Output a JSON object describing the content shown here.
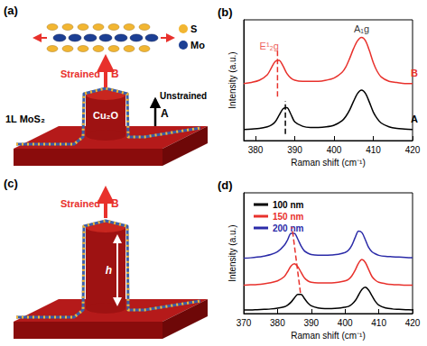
{
  "chart_data": [
    {
      "type": "line",
      "title": "(b)",
      "x_label": "Raman shift (cm⁻¹)",
      "y_label": "Intensity (a.u.)",
      "x": [
        377,
        379,
        381,
        383,
        384,
        385,
        386,
        387,
        388,
        389,
        390,
        392,
        394,
        396,
        398,
        400,
        402,
        403,
        404,
        405,
        406,
        407,
        408,
        409,
        410,
        411,
        412,
        414,
        416,
        418,
        420
      ],
      "series": [
        {
          "name": "B",
          "color": "#e8312c",
          "values": [
            5.2,
            5.3,
            5.5,
            6.0,
            6.6,
            7.2,
            7.3,
            6.8,
            6.1,
            5.7,
            5.5,
            5.4,
            5.4,
            5.4,
            5.5,
            5.7,
            6.2,
            6.7,
            7.5,
            8.4,
            9.1,
            9.4,
            9.1,
            8.2,
            7.1,
            6.3,
            5.8,
            5.4,
            5.3,
            5.2,
            5.2
          ],
          "peak_line": {
            "x": 385.6,
            "y": [
              4.0,
              8.2
            ],
            "line_style": "dashed"
          }
        },
        {
          "name": "A",
          "color": "#000000",
          "values": [
            1.0,
            1.05,
            1.1,
            1.25,
            1.4,
            1.7,
            2.3,
            2.9,
            3.0,
            2.4,
            1.7,
            1.3,
            1.2,
            1.2,
            1.25,
            1.4,
            1.8,
            2.2,
            2.8,
            3.6,
            4.3,
            4.6,
            4.3,
            3.5,
            2.6,
            2.0,
            1.6,
            1.25,
            1.1,
            1.05,
            1.0
          ],
          "peak_line": {
            "x": 387.6,
            "y": [
              0.6,
              3.6
            ],
            "line_style": "dashed"
          }
        }
      ],
      "xlim": [
        377,
        420
      ],
      "xticks": [
        380,
        390,
        400,
        410,
        420
      ],
      "ylim": [
        0,
        11
      ],
      "tick_labels": "x",
      "annotations": [
        {
          "text": "E¹₂g",
          "x": 383.5,
          "y": 8.6,
          "color": "#e8312c"
        },
        {
          "text": "A₁g",
          "x": 407,
          "y": 10.2,
          "color": "#000000"
        }
      ]
    },
    {
      "type": "line",
      "title": "(d)",
      "x_label": "Raman shift (cm⁻¹)",
      "y_label": "Intensity (a.u.)",
      "x": [
        370,
        372,
        374,
        376,
        378,
        380,
        382,
        383,
        384,
        385,
        386,
        387,
        388,
        389,
        390,
        392,
        394,
        396,
        398,
        400,
        401,
        402,
        403,
        404,
        405,
        406,
        407,
        408,
        409,
        410,
        412,
        414,
        416,
        418,
        420
      ],
      "series": [
        {
          "name": "100 nm",
          "color": "#000000",
          "values": [
            0.5,
            0.5,
            0.55,
            0.6,
            0.65,
            0.75,
            0.95,
            1.2,
            1.6,
            2.2,
            2.7,
            2.7,
            2.1,
            1.5,
            1.1,
            0.8,
            0.7,
            0.7,
            0.75,
            0.9,
            1.0,
            1.3,
            1.8,
            2.6,
            3.4,
            3.7,
            3.3,
            2.5,
            1.7,
            1.2,
            0.8,
            0.65,
            0.6,
            0.55,
            0.5
          ]
        },
        {
          "name": "150 nm",
          "color": "#e8312c",
          "values": [
            4.0,
            4.05,
            4.1,
            4.2,
            4.35,
            4.6,
            5.2,
            5.9,
            6.7,
            7.0,
            6.6,
            5.8,
            5.0,
            4.6,
            4.4,
            4.3,
            4.3,
            4.3,
            4.4,
            4.6,
            4.8,
            5.3,
            6.1,
            7.1,
            7.6,
            7.2,
            6.2,
            5.2,
            4.7,
            4.4,
            4.2,
            4.1,
            4.05,
            4.0,
            4.0
          ]
        },
        {
          "name": "200 nm",
          "color": "#2b2ba8",
          "values": [
            7.8,
            7.85,
            7.95,
            8.1,
            8.3,
            8.7,
            9.6,
            10.4,
            11.3,
            11.3,
            10.5,
            9.5,
            8.8,
            8.5,
            8.3,
            8.2,
            8.2,
            8.25,
            8.35,
            8.6,
            8.9,
            9.6,
            10.7,
            11.6,
            11.4,
            10.4,
            9.3,
            8.7,
            8.4,
            8.2,
            8.05,
            8.0,
            7.95,
            7.9,
            7.85
          ]
        }
      ],
      "trend_line": {
        "x": [
          386.8,
          384.3
        ],
        "y": [
          2.9,
          12.2
        ],
        "color": "#e8312c",
        "line_style": "dashed"
      },
      "xlim": [
        370,
        420
      ],
      "xticks": [
        370,
        380,
        390,
        400,
        410,
        420
      ],
      "ylim": [
        0,
        17
      ],
      "tick_labels": "x",
      "legend": "upper left"
    }
  ],
  "diagrams": [
    {
      "label": "(a)",
      "atoms": [
        {
          "name": "S",
          "color": "#f2b632"
        },
        {
          "name": "Mo",
          "color": "#1c3f94"
        }
      ],
      "strained": {
        "text": "Strained",
        "point": "B",
        "color": "#e8312c"
      },
      "unstrained": {
        "text": "Unstrained",
        "point": "A",
        "color": "#000000"
      },
      "layer": "1L MoS₂",
      "substrate": "Cu₂O"
    },
    {
      "label": "(c)",
      "strained": {
        "text": "Strained",
        "point": "B",
        "color": "#e8312c"
      },
      "height": "h"
    }
  ]
}
